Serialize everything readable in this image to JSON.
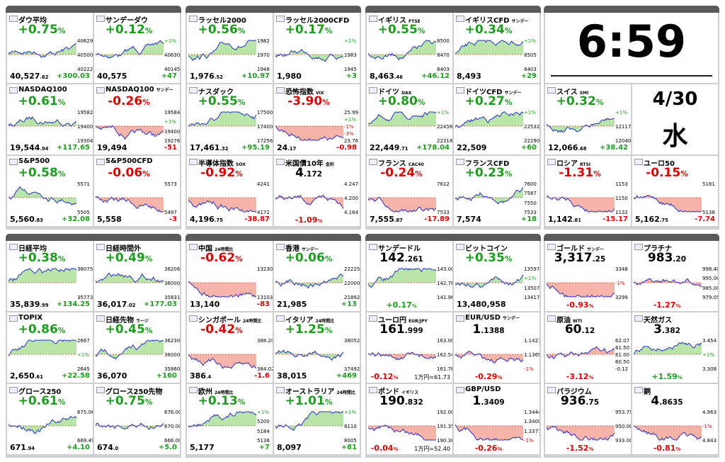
{
  "groups": [
    {
      "tiles": [
        {
          "name": "ダウ平均",
          "pct": "+0.75%",
          "price": "40,527.62",
          "change": "+300.03",
          "labels": [
            "40629",
            "40500",
            "40222"
          ]
        },
        {
          "name": "サンデーダウ",
          "pct": "+0.12%",
          "price": "40,575",
          "change": "+47",
          "labels": [
            "+1%",
            "40630",
            "40145"
          ]
        },
        {
          "name": "NASDAQ100",
          "pct": "+0.61%",
          "price": "19,544.94",
          "change": "+117.65",
          "labels": [
            "19582",
            "19400",
            "19304"
          ]
        },
        {
          "name": "NASDAQ100",
          "tag": "サンデー",
          "pct": "-0.26%",
          "price": "19,494",
          "change": "-51",
          "labels": [
            "19584",
            "+1%",
            "19400",
            "19276"
          ]
        },
        {
          "name": "S&P500",
          "pct": "+0.58%",
          "price": "5,560.83",
          "change": "+32.08",
          "labels": [
            "5571",
            "5505"
          ]
        },
        {
          "name": "S&P500CFD",
          "pct": "-0.06%",
          "price": "5,558",
          "change": "-3",
          "labels": [
            "5573",
            "5497"
          ]
        }
      ]
    },
    {
      "tiles": [
        {
          "name": "ラッセル2000",
          "pct": "+0.56%",
          "price": "1,976.52",
          "change": "+10.97",
          "labels": [
            "1982",
            "1970",
            "1948"
          ]
        },
        {
          "name": "ラッセル2000CFD",
          "pct": "+0.17%",
          "price": "1,980",
          "change": "+3",
          "labels": [
            "+1%",
            "1983",
            "1945"
          ]
        },
        {
          "name": "ナスダック",
          "pct": "+0.55%",
          "price": "17,461.32",
          "change": "+95.19",
          "labels": [
            "17500",
            "17400",
            "17256"
          ]
        },
        {
          "name": "恐怖指数",
          "tag": "VIX",
          "pct": "-3.90%",
          "price": "24.17",
          "change": "-0.98",
          "labels": [
            "25.99",
            "+1%",
            "-1%",
            "-3%",
            "23.76"
          ]
        },
        {
          "name": "半導体指数",
          "tag": "SOX",
          "pct": "-0.92%",
          "price": "4,196.75",
          "change": "-38.87",
          "labels": [
            "4241",
            "4172"
          ]
        },
        {
          "name": "米国債10年",
          "tag": "金利",
          "price": "4.172",
          "pct": "-1.09%",
          "labels": [
            "4.247",
            "4.200",
            "4.164"
          ]
        }
      ]
    },
    {
      "tiles": [
        {
          "name": "イギリス",
          "tag": "FTSE",
          "pct": "+0.55%",
          "price": "8,463.46",
          "change": "+46.12",
          "labels": [
            "8500",
            "8470",
            "8403"
          ]
        },
        {
          "name": "イギリスCFD",
          "tag": "サンデー",
          "pct": "+0.34%",
          "price": "8,493",
          "change": "+29",
          "labels": [
            "+1%",
            "8505",
            "8403"
          ]
        },
        {
          "name": "ドイツ",
          "tag": "DAX",
          "pct": "+0.80%",
          "price": "22,449.71",
          "change": "+178.04",
          "labels": [
            "+1%",
            "22456",
            "22318"
          ]
        },
        {
          "name": "ドイツCFD",
          "tag": "サンデー",
          "pct": "+0.27%",
          "price": "22,509",
          "change": "+60",
          "labels": [
            "+1%",
            "22532",
            "22290"
          ]
        },
        {
          "name": "フランス",
          "tag": "CAC40",
          "pct": "-0.24%",
          "price": "7,555.87",
          "change": "-17.89",
          "labels": [
            "7612",
            "7533"
          ]
        },
        {
          "name": "フランスCFD",
          "pct": "+0.23%",
          "price": "7,574",
          "change": "+18",
          "labels": [
            "7600",
            "7587",
            "7550",
            "7533"
          ]
        }
      ]
    },
    {
      "clock": {
        "time": "6:59",
        "date": "4/30",
        "weekday": "水"
      },
      "tiles": [
        {
          "name": "スイス",
          "tag": "SMI",
          "pct": "+0.32%",
          "price": "12,066.68",
          "change": "+38.42",
          "labels": [
            "+1%",
            "12117",
            "12040"
          ]
        },
        {
          "name": "ロシア",
          "tag": "RTSI",
          "pct": "-1.31%",
          "price": "1,142.81",
          "change": "-15.17",
          "labels": [
            "1153",
            "1150",
            "1132"
          ]
        },
        {
          "name": "ユーロ50",
          "pct": "-0.15%",
          "price": "5,162.75",
          "change": "-7.74",
          "labels": [
            "5181",
            "5138"
          ]
        }
      ]
    },
    {
      "tiles": [
        {
          "name": "日経平均",
          "pct": "+0.38%",
          "price": "35,839.99",
          "change": "+134.25",
          "labels": [
            "36075",
            "35773"
          ]
        },
        {
          "name": "日経時間外",
          "pct": "+0.49%",
          "price": "36,017.02",
          "change": "+177.03",
          "labels": [
            "36206",
            "36000",
            "35831"
          ]
        },
        {
          "name": "TOPIX",
          "pct": "+0.86%",
          "price": "2,650.61",
          "change": "+22.58",
          "labels": [
            "2667",
            "+1%",
            "2645"
          ]
        },
        {
          "name": "日経先物",
          "tag": "ラージ",
          "pct": "+0.45%",
          "price": "36,070",
          "change": "+160",
          "labels": [
            "36230",
            "36000",
            "35860"
          ]
        },
        {
          "name": "グロース250",
          "pct": "+0.61%",
          "price": "671.94",
          "change": "+4.10",
          "labels": [
            "675.06",
            "669.49"
          ]
        },
        {
          "name": "グロース250先物",
          "pct": "+0.75%",
          "price": "674.0",
          "change": "+5.0",
          "labels": [
            "676.00",
            "670.00",
            "666.00"
          ]
        }
      ]
    },
    {
      "tiles": [
        {
          "name": "中国",
          "tag": "24時間比",
          "pct": "-0.62%",
          "price": "13,140",
          "change": "-83",
          "labels": [
            "13230",
            "13103"
          ]
        },
        {
          "name": "香港",
          "tag": "サンデー",
          "pct": "+0.06%",
          "price": "21,985",
          "change": "+13",
          "labels": [
            "22225",
            "22000",
            "21892"
          ]
        },
        {
          "name": "シンガポール",
          "tag": "24時間比",
          "pct": "-0.42%",
          "price": "386.4",
          "change": "-1.6",
          "labels": [
            "388.20",
            "384.02"
          ]
        },
        {
          "name": "イタリア",
          "tag": "24時間比",
          "pct": "+1.25%",
          "price": "38,015",
          "change": "+469",
          "labels": [
            "38052",
            "37492"
          ]
        },
        {
          "name": "欧州",
          "tag": "24時間比",
          "pct": "+0.13%",
          "price": "5,177",
          "change": "+7",
          "labels": [
            "+1%",
            "5200",
            "5184",
            "5138"
          ]
        },
        {
          "name": "オーストラリア",
          "tag": "24時間比",
          "pct": "+1.01%",
          "price": "8,097",
          "change": "+81",
          "labels": [
            "+1%",
            "8110",
            "8005"
          ]
        }
      ]
    },
    {
      "tiles": [
        {
          "name": "サンデードル",
          "price": "142.261",
          "pct": "+0.17%",
          "labels": [
            "143.00",
            "142.76",
            "141.96"
          ]
        },
        {
          "name": "ビットコイン",
          "pct": "+0.35%",
          "price": "13,480,958",
          "labels": [
            "13597",
            "+1%",
            "13507",
            "13417"
          ]
        },
        {
          "name": "ユーロ円",
          "tag": "EUR/JPY",
          "price": "161.999",
          "pct": "-0.12%",
          "note": "1万円=61.73",
          "labels": [
            "163.00",
            "162.54",
            "161.76"
          ]
        },
        {
          "name": "EUR/USD",
          "tag": "サンデー",
          "price": "1.1388",
          "pct": "-0.29%",
          "labels": [
            "1.1421",
            "1.1369",
            "-1%"
          ]
        },
        {
          "name": "ポンド",
          "tag": "イギリス",
          "price": "190.832",
          "pct": "-0.04%",
          "note": "1万円=52.40",
          "labels": [
            "192.00",
            "191.35",
            "190.38"
          ]
        },
        {
          "name": "GBP/USD",
          "price": "1.3409",
          "pct": "-0.26%",
          "labels": [
            "1.3444",
            "1.3400",
            "1.3377",
            "-1%"
          ]
        }
      ]
    },
    {
      "tiles": [
        {
          "name": "ゴールド",
          "tag": "サンデー",
          "price": "3,317.25",
          "pct": "-0.93%",
          "labels": [
            "3348",
            "-1%",
            "3299"
          ]
        },
        {
          "name": "プラチナ",
          "price": "983.20",
          "pct": "-1.27%",
          "labels": [
            "998.40",
            "995.00",
            "985.00",
            "979.05"
          ]
        },
        {
          "name": "原油",
          "tag": "WTI",
          "price": "60.12",
          "pct": "-3.12%",
          "labels": [
            "62.07",
            "61.50",
            "61.00",
            "60.50",
            "-0.12"
          ]
        },
        {
          "name": "天然ガス",
          "price": "3.382",
          "pct": "+1.59%",
          "labels": [
            "3.454",
            "+1%",
            "3.308"
          ]
        },
        {
          "name": "パラジウム",
          "price": "936.75",
          "pct": "-1.52%",
          "labels": [
            "953.75",
            "950.00",
            "933.00"
          ]
        },
        {
          "name": "銅",
          "price": "4.8635",
          "pct": "-0.81%",
          "labels": [
            "4.963",
            "-1%",
            "4.843"
          ]
        }
      ]
    }
  ]
}
